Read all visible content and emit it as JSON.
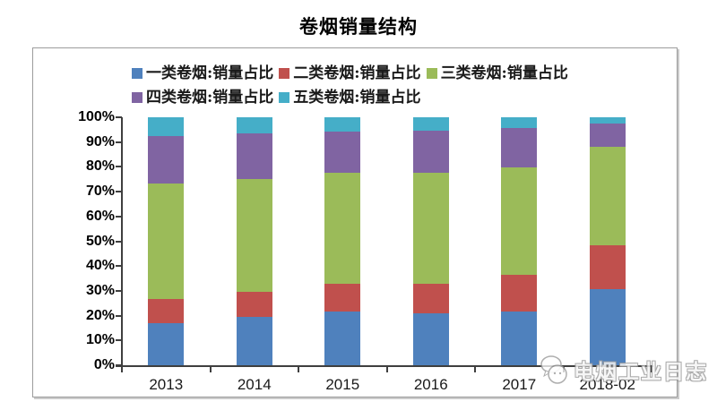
{
  "title": "卷烟销量结构",
  "watermark": {
    "text": "电烟工业日志"
  },
  "chart_data": {
    "type": "bar",
    "stacked": true,
    "title": "卷烟销量结构",
    "xlabel": "",
    "ylabel": "",
    "ylim": [
      0,
      100
    ],
    "grid": false,
    "legend_position": "top",
    "categories": [
      "2013",
      "2014",
      "2015",
      "2016",
      "2017",
      "2018-02"
    ],
    "yticks": [
      "0%",
      "10%",
      "20%",
      "30%",
      "40%",
      "50%",
      "60%",
      "70%",
      "80%",
      "90%",
      "100%"
    ],
    "series": [
      {
        "name": "一类卷烟:销量占比",
        "color": "#4F81BD",
        "values": [
          17.0,
          19.5,
          21.5,
          21.0,
          21.5,
          30.6
        ]
      },
      {
        "name": "二类卷烟:销量占比",
        "color": "#C0504D",
        "values": [
          9.7,
          10.2,
          11.2,
          12.0,
          15.1,
          17.7
        ]
      },
      {
        "name": "三类卷烟:销量占比",
        "color": "#9BBB59",
        "values": [
          46.5,
          45.4,
          45.0,
          44.7,
          43.3,
          39.7
        ]
      },
      {
        "name": "四类卷烟:销量占比",
        "color": "#8064A2",
        "values": [
          19.3,
          18.3,
          16.6,
          16.9,
          15.7,
          9.4
        ]
      },
      {
        "name": "五类卷烟:销量占比",
        "color": "#45AEC8",
        "values": [
          7.5,
          6.6,
          5.7,
          5.4,
          4.4,
          2.6
        ]
      }
    ]
  }
}
